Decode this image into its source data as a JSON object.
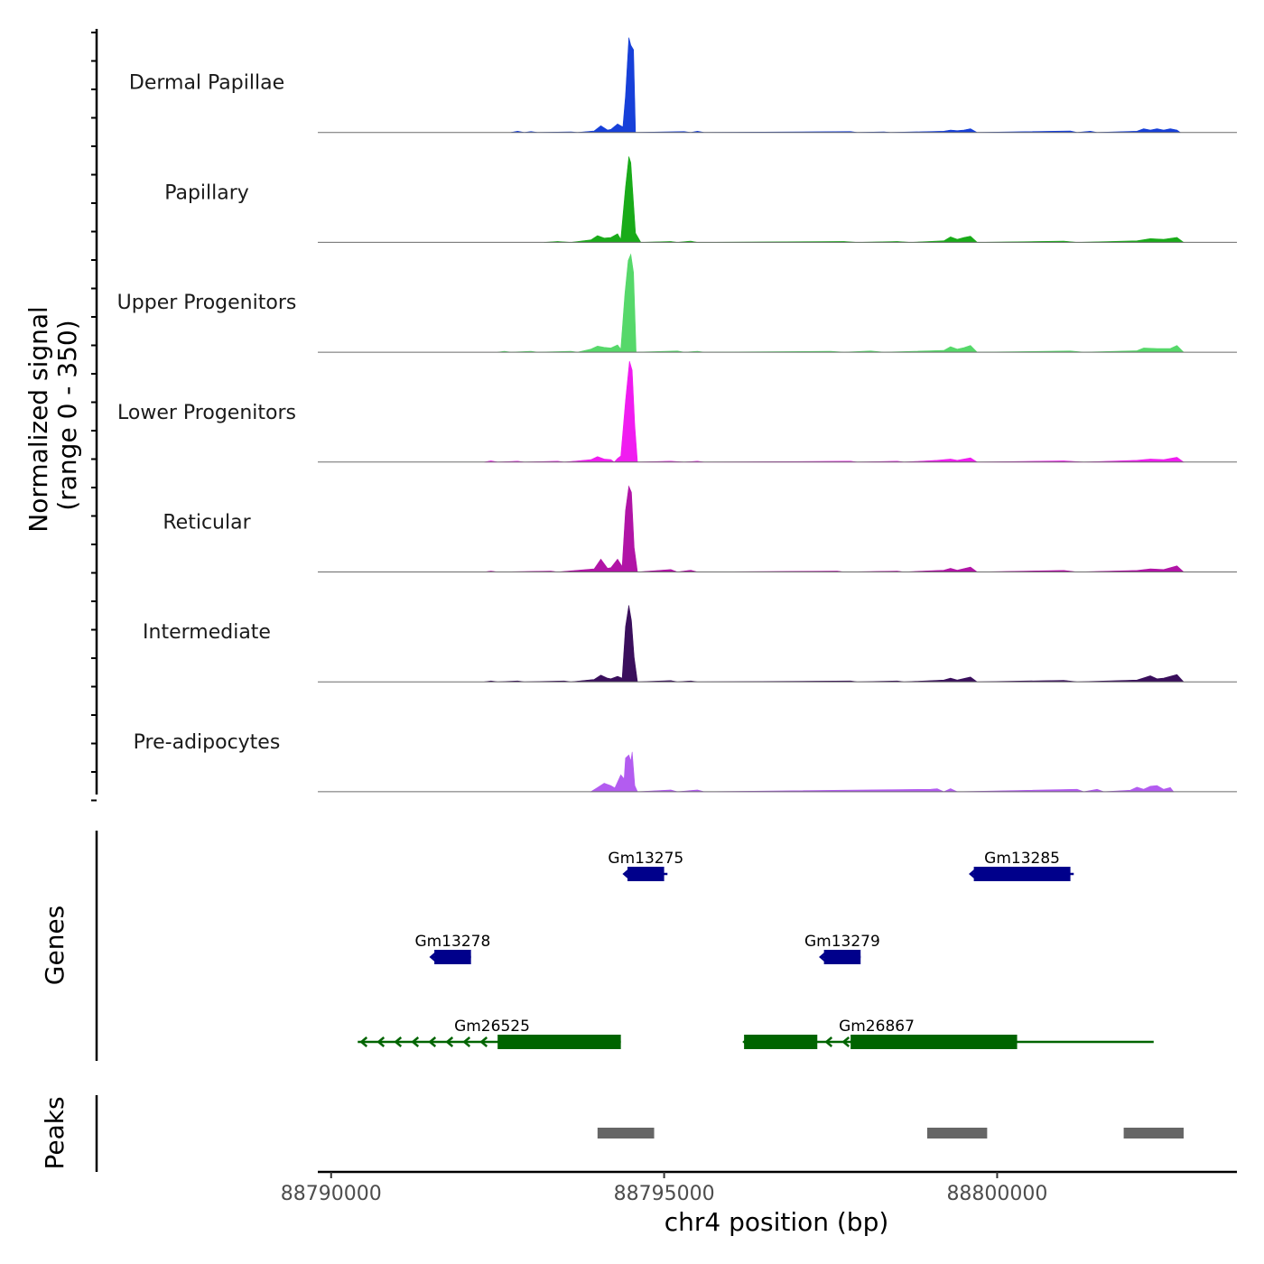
{
  "chart_data": {
    "type": "area",
    "title": "",
    "xlabel": "chr4 position (bp)",
    "ylabel": "Normalized signal\n(range 0 - 350)",
    "ylabel_lines": [
      "Normalized signal",
      "(range 0 - 350)"
    ],
    "ylim": [
      0,
      350
    ],
    "xlim": [
      88789800,
      88803600
    ],
    "x_ticks": [
      88790000,
      88795000,
      88800000
    ],
    "x_tick_labels": [
      "88790000",
      "88795000",
      "88800000"
    ],
    "panel_labels": {
      "genes": "Genes",
      "peaks": "Peaks"
    },
    "tracks": [
      {
        "name": "Dermal Papillae",
        "color": "#1740d9",
        "points": [
          [
            88792700,
            0
          ],
          [
            88792800,
            4
          ],
          [
            88792900,
            0
          ],
          [
            88793000,
            3
          ],
          [
            88793100,
            0
          ],
          [
            88793600,
            2
          ],
          [
            88793700,
            0
          ],
          [
            88793950,
            5
          ],
          [
            88794050,
            22
          ],
          [
            88794150,
            8
          ],
          [
            88794200,
            10
          ],
          [
            88794300,
            28
          ],
          [
            88794380,
            18
          ],
          [
            88794420,
            120
          ],
          [
            88794470,
            310
          ],
          [
            88794500,
            285
          ],
          [
            88794540,
            270
          ],
          [
            88794570,
            0
          ],
          [
            88795300,
            3
          ],
          [
            88795400,
            0
          ],
          [
            88795500,
            4
          ],
          [
            88795600,
            0
          ],
          [
            88797800,
            3
          ],
          [
            88797900,
            0
          ],
          [
            88798300,
            2
          ],
          [
            88798400,
            0
          ],
          [
            88799200,
            4
          ],
          [
            88799300,
            8
          ],
          [
            88799400,
            6
          ],
          [
            88799500,
            8
          ],
          [
            88799600,
            12
          ],
          [
            88799700,
            0
          ],
          [
            88801100,
            5
          ],
          [
            88801200,
            0
          ],
          [
            88801400,
            4
          ],
          [
            88801500,
            0
          ],
          [
            88802100,
            4
          ],
          [
            88802200,
            12
          ],
          [
            88802300,
            8
          ],
          [
            88802400,
            12
          ],
          [
            88802500,
            8
          ],
          [
            88802600,
            12
          ],
          [
            88802700,
            8
          ],
          [
            88802750,
            0
          ]
        ]
      },
      {
        "name": "Papillary",
        "color": "#19ab19",
        "points": [
          [
            88793200,
            0
          ],
          [
            88793400,
            3
          ],
          [
            88793600,
            0
          ],
          [
            88793900,
            8
          ],
          [
            88794000,
            22
          ],
          [
            88794100,
            14
          ],
          [
            88794200,
            16
          ],
          [
            88794300,
            28
          ],
          [
            88794350,
            10
          ],
          [
            88794420,
            180
          ],
          [
            88794470,
            280
          ],
          [
            88794500,
            260
          ],
          [
            88794570,
            30
          ],
          [
            88794650,
            0
          ],
          [
            88795100,
            3
          ],
          [
            88795200,
            0
          ],
          [
            88795400,
            4
          ],
          [
            88795500,
            0
          ],
          [
            88797700,
            3
          ],
          [
            88797900,
            0
          ],
          [
            88798500,
            3
          ],
          [
            88798700,
            0
          ],
          [
            88799200,
            5
          ],
          [
            88799300,
            18
          ],
          [
            88799400,
            10
          ],
          [
            88799500,
            16
          ],
          [
            88799600,
            20
          ],
          [
            88799700,
            0
          ],
          [
            88801000,
            4
          ],
          [
            88801200,
            0
          ],
          [
            88802100,
            5
          ],
          [
            88802300,
            12
          ],
          [
            88802500,
            10
          ],
          [
            88802700,
            16
          ],
          [
            88802800,
            0
          ]
        ]
      },
      {
        "name": "Upper Progenitors",
        "color": "#56d86a",
        "points": [
          [
            88792500,
            0
          ],
          [
            88792600,
            3
          ],
          [
            88792700,
            0
          ],
          [
            88793000,
            3
          ],
          [
            88793100,
            0
          ],
          [
            88793600,
            3
          ],
          [
            88793700,
            0
          ],
          [
            88793900,
            10
          ],
          [
            88794000,
            20
          ],
          [
            88794100,
            16
          ],
          [
            88794200,
            14
          ],
          [
            88794300,
            24
          ],
          [
            88794350,
            10
          ],
          [
            88794410,
            190
          ],
          [
            88794460,
            300
          ],
          [
            88794500,
            320
          ],
          [
            88794540,
            260
          ],
          [
            88794580,
            0
          ],
          [
            88795200,
            4
          ],
          [
            88795300,
            0
          ],
          [
            88795500,
            3
          ],
          [
            88795600,
            0
          ],
          [
            88797500,
            3
          ],
          [
            88797700,
            0
          ],
          [
            88798100,
            4
          ],
          [
            88798300,
            0
          ],
          [
            88799200,
            6
          ],
          [
            88799300,
            18
          ],
          [
            88799400,
            10
          ],
          [
            88799500,
            15
          ],
          [
            88799600,
            22
          ],
          [
            88799700,
            0
          ],
          [
            88801100,
            4
          ],
          [
            88801300,
            0
          ],
          [
            88802100,
            5
          ],
          [
            88802200,
            14
          ],
          [
            88802400,
            12
          ],
          [
            88802600,
            12
          ],
          [
            88802700,
            22
          ],
          [
            88802800,
            0
          ]
        ]
      },
      {
        "name": "Lower Progenitors",
        "color": "#f01cf0",
        "points": [
          [
            88792300,
            0
          ],
          [
            88792400,
            4
          ],
          [
            88792500,
            0
          ],
          [
            88792800,
            3
          ],
          [
            88792900,
            0
          ],
          [
            88793400,
            3
          ],
          [
            88793500,
            0
          ],
          [
            88793900,
            8
          ],
          [
            88794000,
            18
          ],
          [
            88794100,
            10
          ],
          [
            88794200,
            8
          ],
          [
            88794250,
            0
          ],
          [
            88794300,
            12
          ],
          [
            88794350,
            20
          ],
          [
            88794420,
            200
          ],
          [
            88794480,
            330
          ],
          [
            88794520,
            300
          ],
          [
            88794560,
            120
          ],
          [
            88794600,
            0
          ],
          [
            88795100,
            3
          ],
          [
            88795300,
            0
          ],
          [
            88795500,
            3
          ],
          [
            88795600,
            0
          ],
          [
            88797800,
            3
          ],
          [
            88797900,
            0
          ],
          [
            88798500,
            3
          ],
          [
            88798600,
            0
          ],
          [
            88799100,
            6
          ],
          [
            88799300,
            10
          ],
          [
            88799400,
            6
          ],
          [
            88799600,
            14
          ],
          [
            88799700,
            0
          ],
          [
            88801000,
            4
          ],
          [
            88801300,
            0
          ],
          [
            88802100,
            6
          ],
          [
            88802300,
            10
          ],
          [
            88802500,
            8
          ],
          [
            88802700,
            16
          ],
          [
            88802800,
            0
          ]
        ]
      },
      {
        "name": "Reticular",
        "color": "#b114a6",
        "points": [
          [
            88792300,
            0
          ],
          [
            88792400,
            3
          ],
          [
            88792500,
            0
          ],
          [
            88793300,
            3
          ],
          [
            88793400,
            0
          ],
          [
            88793950,
            10
          ],
          [
            88794050,
            42
          ],
          [
            88794150,
            12
          ],
          [
            88794200,
            14
          ],
          [
            88794300,
            42
          ],
          [
            88794370,
            18
          ],
          [
            88794420,
            200
          ],
          [
            88794470,
            280
          ],
          [
            88794510,
            260
          ],
          [
            88794550,
            80
          ],
          [
            88794600,
            0
          ],
          [
            88795100,
            8
          ],
          [
            88795200,
            0
          ],
          [
            88795400,
            6
          ],
          [
            88795500,
            0
          ],
          [
            88797600,
            3
          ],
          [
            88797700,
            0
          ],
          [
            88798500,
            3
          ],
          [
            88798600,
            0
          ],
          [
            88799200,
            6
          ],
          [
            88799300,
            12
          ],
          [
            88799400,
            6
          ],
          [
            88799600,
            16
          ],
          [
            88799700,
            0
          ],
          [
            88801000,
            5
          ],
          [
            88801200,
            0
          ],
          [
            88802100,
            5
          ],
          [
            88802300,
            10
          ],
          [
            88802500,
            8
          ],
          [
            88802700,
            20
          ],
          [
            88802800,
            0
          ]
        ]
      },
      {
        "name": "Intermediate",
        "color": "#3a0f5c",
        "points": [
          [
            88792300,
            0
          ],
          [
            88792400,
            3
          ],
          [
            88792500,
            0
          ],
          [
            88792800,
            3
          ],
          [
            88792900,
            0
          ],
          [
            88793500,
            3
          ],
          [
            88793600,
            0
          ],
          [
            88793950,
            8
          ],
          [
            88794050,
            22
          ],
          [
            88794150,
            12
          ],
          [
            88794200,
            10
          ],
          [
            88794300,
            18
          ],
          [
            88794370,
            12
          ],
          [
            88794420,
            180
          ],
          [
            88794470,
            250
          ],
          [
            88794510,
            200
          ],
          [
            88794550,
            80
          ],
          [
            88794600,
            0
          ],
          [
            88795100,
            4
          ],
          [
            88795200,
            0
          ],
          [
            88795400,
            3
          ],
          [
            88795500,
            0
          ],
          [
            88797800,
            3
          ],
          [
            88797900,
            0
          ],
          [
            88798500,
            3
          ],
          [
            88798600,
            0
          ],
          [
            88799200,
            6
          ],
          [
            88799300,
            12
          ],
          [
            88799400,
            6
          ],
          [
            88799600,
            16
          ],
          [
            88799700,
            0
          ],
          [
            88801000,
            5
          ],
          [
            88801200,
            0
          ],
          [
            88802100,
            6
          ],
          [
            88802300,
            20
          ],
          [
            88802400,
            10
          ],
          [
            88802500,
            12
          ],
          [
            88802700,
            24
          ],
          [
            88802800,
            0
          ]
        ]
      },
      {
        "name": "Pre-adipocytes",
        "color": "#b35cf0",
        "points": [
          [
            88793900,
            0
          ],
          [
            88794000,
            14
          ],
          [
            88794100,
            28
          ],
          [
            88794200,
            20
          ],
          [
            88794260,
            12
          ],
          [
            88794350,
            55
          ],
          [
            88794400,
            42
          ],
          [
            88794420,
            110
          ],
          [
            88794470,
            120
          ],
          [
            88794500,
            100
          ],
          [
            88794520,
            130
          ],
          [
            88794560,
            20
          ],
          [
            88794600,
            0
          ],
          [
            88795100,
            6
          ],
          [
            88795200,
            0
          ],
          [
            88795500,
            6
          ],
          [
            88795600,
            0
          ],
          [
            88799000,
            8
          ],
          [
            88799100,
            10
          ],
          [
            88799200,
            0
          ],
          [
            88799300,
            10
          ],
          [
            88799400,
            0
          ],
          [
            88801200,
            8
          ],
          [
            88801300,
            0
          ],
          [
            88801500,
            8
          ],
          [
            88801600,
            0
          ],
          [
            88802000,
            5
          ],
          [
            88802100,
            15
          ],
          [
            88802200,
            8
          ],
          [
            88802300,
            18
          ],
          [
            88802400,
            20
          ],
          [
            88802500,
            8
          ],
          [
            88802600,
            14
          ],
          [
            88802650,
            0
          ]
        ]
      }
    ],
    "genes": [
      {
        "name": "Gm13275",
        "row": 1,
        "strand": "-",
        "start": 88794400,
        "end": 88795050,
        "blocks": [
          [
            88794450,
            88795000
          ]
        ],
        "color": "#00008b"
      },
      {
        "name": "Gm13285",
        "row": 1,
        "strand": "-",
        "start": 88799600,
        "end": 88801150,
        "blocks": [
          [
            88799650,
            88801100
          ]
        ],
        "color": "#00008b"
      },
      {
        "name": "Gm13278",
        "row": 2,
        "strand": "-",
        "start": 88791500,
        "end": 88792100,
        "blocks": [
          [
            88791550,
            88792100
          ]
        ],
        "color": "#00008b"
      },
      {
        "name": "Gm13279",
        "row": 2,
        "strand": "-",
        "start": 88797350,
        "end": 88797950,
        "blocks": [
          [
            88797400,
            88797950
          ]
        ],
        "color": "#00008b"
      },
      {
        "name": "Gm26525",
        "row": 3,
        "strand": "-",
        "start": 88790400,
        "end": 88794350,
        "blocks": [
          [
            88792500,
            88794350
          ]
        ],
        "color": "#006400"
      },
      {
        "name": "Gm26867",
        "row": 3,
        "strand": "-",
        "start": 88796200,
        "end": 88802350,
        "blocks": [
          [
            88796200,
            88797300
          ],
          [
            88797800,
            88800300
          ]
        ],
        "color": "#006400"
      }
    ],
    "peaks": [
      {
        "start": 88794000,
        "end": 88794850
      },
      {
        "start": 88798950,
        "end": 88799850
      },
      {
        "start": 88801900,
        "end": 88802800
      }
    ],
    "peak_color": "#666666"
  }
}
